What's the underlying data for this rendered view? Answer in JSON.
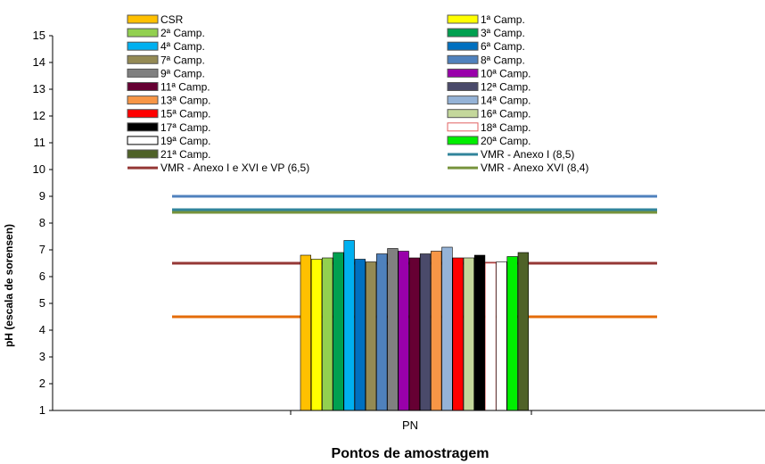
{
  "chart_data": {
    "type": "bar",
    "title": "",
    "ylabel": "pH (escala de sorensen)",
    "xlabel": "Pontos de amostragem",
    "ylim": [
      1,
      15
    ],
    "yticks": [
      1,
      2,
      3,
      4,
      5,
      6,
      7,
      8,
      9,
      10,
      11,
      12,
      13,
      14,
      15
    ],
    "categories": [
      "PN"
    ],
    "grid": false,
    "legend_position": "top",
    "series": [
      {
        "name": "CSR",
        "values": [
          6.8
        ],
        "color": "#ffc000"
      },
      {
        "name": "1ª Camp.",
        "values": [
          6.65
        ],
        "color": "#ffff00"
      },
      {
        "name": "2ª Camp.",
        "values": [
          6.7
        ],
        "color": "#92d050"
      },
      {
        "name": "3ª Camp.",
        "values": [
          6.9
        ],
        "color": "#00a050"
      },
      {
        "name": "4ª Camp.",
        "values": [
          7.35
        ],
        "color": "#00b0f0"
      },
      {
        "name": "6ª Camp.",
        "values": [
          6.65
        ],
        "color": "#0070c0"
      },
      {
        "name": "7ª Camp.",
        "values": [
          6.55
        ],
        "color": "#948a54"
      },
      {
        "name": "8ª Camp.",
        "values": [
          6.85
        ],
        "color": "#4f81bd"
      },
      {
        "name": "9ª Camp.",
        "values": [
          7.05
        ],
        "color": "#808080"
      },
      {
        "name": "10ª Camp.",
        "values": [
          6.95
        ],
        "color": "#9900aa"
      },
      {
        "name": "11ª Camp.",
        "values": [
          6.7
        ],
        "color": "#660033"
      },
      {
        "name": "12ª Camp.",
        "values": [
          6.85
        ],
        "color": "#4a4a6a"
      },
      {
        "name": "13ª Camp.",
        "values": [
          6.95
        ],
        "color": "#f79646"
      },
      {
        "name": "14ª Camp.",
        "values": [
          7.1
        ],
        "color": "#95b3d7"
      },
      {
        "name": "15ª Camp.",
        "values": [
          6.7
        ],
        "color": "#ff0000"
      },
      {
        "name": "16ª Camp.",
        "values": [
          6.7
        ],
        "color": "#c4d79b"
      },
      {
        "name": "17ª Camp.",
        "values": [
          6.8
        ],
        "color": "#000000"
      },
      {
        "name": "18ª Camp.",
        "values": [
          6.5
        ],
        "color": "#ffffff",
        "stroke": "#e06060"
      },
      {
        "name": "19ª Camp.",
        "values": [
          6.55
        ],
        "color": "#ffffff",
        "stroke": "#000000"
      },
      {
        "name": "20ª Camp.",
        "values": [
          6.75
        ],
        "color": "#00ee00"
      },
      {
        "name": "21ª Camp.",
        "values": [
          6.9
        ],
        "color": "#4f6228"
      }
    ],
    "reference_lines": [
      {
        "name": "VMR - Anexo I (8,5)",
        "value": 8.5,
        "color": "#31849b"
      },
      {
        "name": "VMR - Anexo I e XVI e VP (6,5)",
        "value": 6.5,
        "color": "#953735"
      },
      {
        "name": "VMR - Anexo XVI (8,4)",
        "value": 8.4,
        "color": "#77933c"
      },
      {
        "name": "",
        "value": 9.0,
        "color": "#4f81bd"
      },
      {
        "name": "",
        "value": 4.5,
        "color": "#e46c0a"
      }
    ],
    "legend_order": [
      "CSR",
      "1ª Camp.",
      "2ª Camp.",
      "3ª Camp.",
      "4ª Camp.",
      "6ª Camp.",
      "7ª Camp.",
      "8ª Camp.",
      "9ª Camp.",
      "10ª Camp.",
      "11ª Camp.",
      "12ª Camp.",
      "13ª Camp.",
      "14ª Camp.",
      "15ª Camp.",
      "16ª Camp.",
      "17ª Camp.",
      "18ª Camp.",
      "19ª Camp.",
      "20ª Camp.",
      "21ª Camp.",
      "VMR - Anexo I (8,5)",
      "VMR - Anexo I e XVI e VP (6,5)",
      "VMR - Anexo XVI (8,4)"
    ]
  }
}
